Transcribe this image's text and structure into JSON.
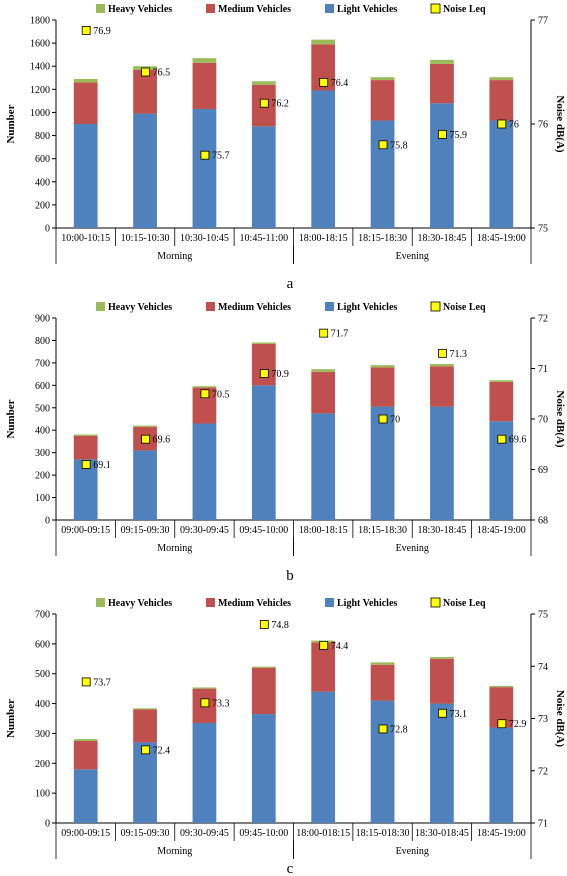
{
  "legend": {
    "heavy": "Heavy Vehicles",
    "medium": "Medium Vehicles",
    "light": "Light Vehicles",
    "noise": "Noise Leq"
  },
  "colors": {
    "heavy": "#9bbb59",
    "medium": "#c0504d",
    "light": "#4f81bd",
    "noise": "#ffff00"
  },
  "chart_data": [
    {
      "type": "bar",
      "panel_label": "a",
      "ylabel": "Number",
      "y2label": "Noise dB(A)",
      "ylim": [
        0,
        1800
      ],
      "yticks": [
        0,
        200,
        400,
        600,
        800,
        1000,
        1200,
        1400,
        1600,
        1800
      ],
      "y2lim": [
        75,
        77
      ],
      "y2ticks": [
        75,
        76,
        77
      ],
      "categories": [
        "10:00-10:15",
        "10:15-10:30",
        "10:30-10:45",
        "10:45-11:00",
        "18:00-18:15",
        "18:15-18:30",
        "18:30-18:45",
        "18:45-19:00"
      ],
      "groups": [
        {
          "label": "Morning",
          "count": 4
        },
        {
          "label": "Evening",
          "count": 4
        }
      ],
      "series": [
        {
          "name": "Light Vehicles",
          "values": [
            900,
            990,
            1030,
            880,
            1190,
            930,
            1080,
            930
          ]
        },
        {
          "name": "Medium Vehicles",
          "values": [
            360,
            380,
            400,
            360,
            400,
            350,
            340,
            350
          ]
        },
        {
          "name": "Heavy Vehicles",
          "values": [
            30,
            30,
            40,
            30,
            40,
            25,
            35,
            25
          ]
        }
      ],
      "noise": [
        76.9,
        76.5,
        75.7,
        76.2,
        76.4,
        75.8,
        75.9,
        76
      ],
      "noise_labels": [
        "76.9",
        "76.5",
        "75.7",
        "76.2",
        "76.4",
        "75.8",
        "75.9",
        "76"
      ]
    },
    {
      "type": "bar",
      "panel_label": "b",
      "ylabel": "Number",
      "y2label": "Noise dB(A)",
      "ylim": [
        0,
        900
      ],
      "yticks": [
        0,
        100,
        200,
        300,
        400,
        500,
        600,
        700,
        800,
        900
      ],
      "y2lim": [
        68,
        72
      ],
      "y2ticks": [
        68,
        69,
        70,
        71,
        72
      ],
      "categories": [
        "09:00-09:15",
        "09:15-09:30",
        "09:30-09:45",
        "09:45-10:00",
        "18:00-18:15",
        "18:15-18:30",
        "18:30-18:45",
        "18:45-19:00"
      ],
      "groups": [
        {
          "label": "Morning",
          "count": 4
        },
        {
          "label": "Evening",
          "count": 4
        }
      ],
      "series": [
        {
          "name": "Light Vehicles",
          "values": [
            270,
            310,
            430,
            600,
            475,
            505,
            505,
            440
          ]
        },
        {
          "name": "Medium Vehicles",
          "values": [
            105,
            105,
            160,
            185,
            185,
            175,
            180,
            175
          ]
        },
        {
          "name": "Heavy Vehicles",
          "values": [
            6,
            6,
            6,
            6,
            12,
            10,
            10,
            8
          ]
        }
      ],
      "noise": [
        69.1,
        69.6,
        70.5,
        70.9,
        71.7,
        70,
        71.3,
        69.6
      ],
      "noise_labels": [
        "69.1",
        "69.6",
        "70.5",
        "70.9",
        "71.7",
        "70",
        "71.3",
        "69.6"
      ]
    },
    {
      "type": "bar",
      "panel_label": "c",
      "ylabel": "Number",
      "y2label": "Noise dB(A)",
      "ylim": [
        0,
        700
      ],
      "yticks": [
        0,
        100,
        200,
        300,
        400,
        500,
        600,
        700
      ],
      "y2lim": [
        71,
        75
      ],
      "y2ticks": [
        71,
        72,
        73,
        74,
        75
      ],
      "categories": [
        "09:00-09:15",
        "09:15-09:30",
        "09:30-09:45",
        "09:45-10:00",
        "18:00-018:15",
        "18:15-018:30",
        "18:30-018:45",
        "18:45-19:00"
      ],
      "groups": [
        {
          "label": "Morning",
          "count": 4
        },
        {
          "label": "Evening",
          "count": 4
        }
      ],
      "series": [
        {
          "name": "Light Vehicles",
          "values": [
            180,
            270,
            335,
            365,
            440,
            410,
            400,
            320
          ]
        },
        {
          "name": "Medium Vehicles",
          "values": [
            95,
            110,
            115,
            155,
            165,
            120,
            150,
            135
          ]
        },
        {
          "name": "Heavy Vehicles",
          "values": [
            6,
            4,
            4,
            4,
            6,
            8,
            6,
            4
          ]
        }
      ],
      "noise": [
        73.7,
        72.4,
        73.3,
        74.8,
        74.4,
        72.8,
        73.1,
        72.9
      ],
      "noise_labels": [
        "73.7",
        "72.4",
        "73.3",
        "74.8",
        "74.4",
        "72.8",
        "73.1",
        "72.9"
      ]
    }
  ]
}
